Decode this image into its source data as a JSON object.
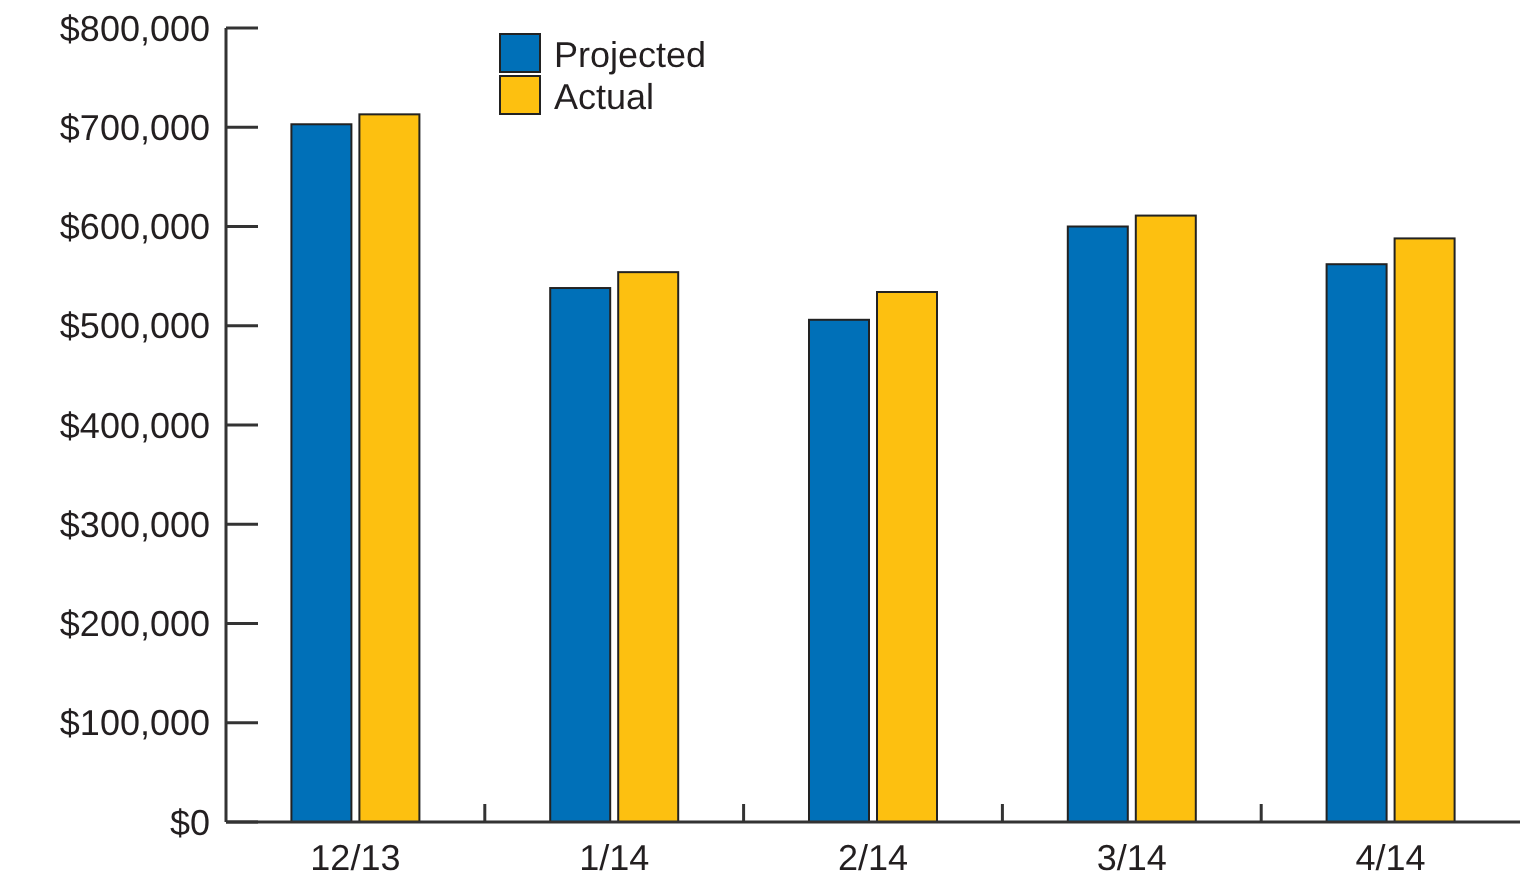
{
  "chart_data": {
    "type": "bar",
    "categories": [
      "12/13",
      "1/14",
      "2/14",
      "3/14",
      "4/14"
    ],
    "series": [
      {
        "name": "Projected",
        "color": "#0070b8",
        "values": [
          703000,
          538000,
          506000,
          600000,
          562000
        ]
      },
      {
        "name": "Actual",
        "color": "#fdc010",
        "values": [
          713000,
          554000,
          534000,
          611000,
          588000
        ]
      }
    ],
    "ylim": [
      0,
      800000
    ],
    "yticks": [
      {
        "value": 0,
        "label": "$0"
      },
      {
        "value": 100000,
        "label": "$100,000"
      },
      {
        "value": 200000,
        "label": "$200,000"
      },
      {
        "value": 300000,
        "label": "$300,000"
      },
      {
        "value": 400000,
        "label": "$400,000"
      },
      {
        "value": 500000,
        "label": "$500,000"
      },
      {
        "value": 600000,
        "label": "$600,000"
      },
      {
        "value": 700000,
        "label": "$700,000"
      },
      {
        "value": 800000,
        "label": "$800,000"
      }
    ],
    "grid": false,
    "legend": "top"
  }
}
